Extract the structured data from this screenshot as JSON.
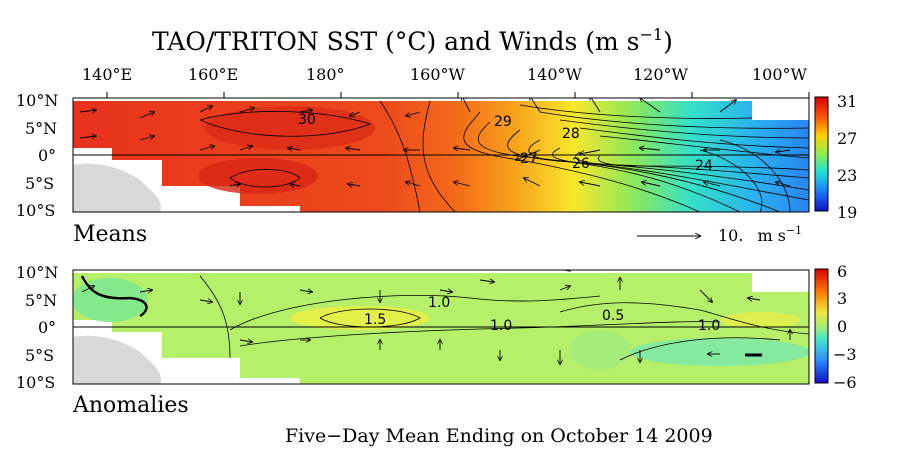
{
  "title": "TAO/TRITON SST (°C) and Winds (m s",
  "title_exp": "−1",
  "title_close": ")",
  "lon_labels": [
    "140°E",
    "160°E",
    "180°",
    "160°W",
    "140°W",
    "120°W",
    "100°W"
  ],
  "lat_labels": [
    "10°N",
    "5°N",
    "0°",
    "5°S",
    "10°S"
  ],
  "means": {
    "label": "Means",
    "colorbar": {
      "ticks": [
        "31",
        "27",
        "23",
        "19"
      ],
      "range": [
        19,
        31
      ]
    },
    "contour_labels": [
      "30",
      "29",
      "28",
      "27",
      "26",
      "24"
    ],
    "reference_vector": {
      "value": "10.",
      "unit": "m s",
      "unit_exp": "−1"
    }
  },
  "anomalies": {
    "label": "Anomalies",
    "colorbar": {
      "ticks": [
        "6",
        "3",
        "0",
        "−3",
        "−6"
      ],
      "range": [
        -6,
        6
      ]
    },
    "contour_labels": [
      "1.0",
      "1.5",
      "1.0",
      "0.5",
      "1.0"
    ]
  },
  "footer": "Five−Day Mean Ending on October 14 2009",
  "colors": {
    "means_warm": "#e8321e",
    "means_cool": "#2a84f0",
    "anom_base": "#b6ef6a",
    "land": "#d8d8d8"
  }
}
